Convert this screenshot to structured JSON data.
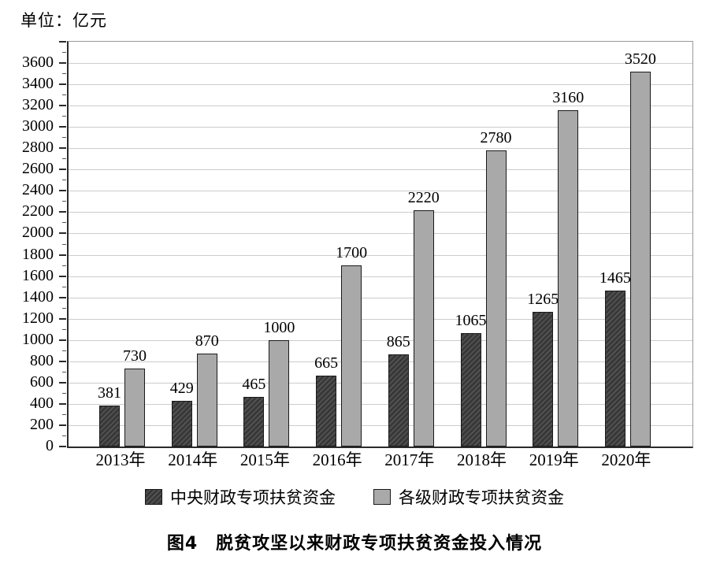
{
  "chart_data": {
    "type": "bar",
    "unit_label": "单位：亿元",
    "caption": "图4　脱贫攻坚以来财政专项扶贫资金投入情况",
    "categories": [
      "2013年",
      "2014年",
      "2015年",
      "2016年",
      "2017年",
      "2018年",
      "2019年",
      "2020年"
    ],
    "series": [
      {
        "name": "中央财政专项扶贫资金",
        "style": "dark-hatched",
        "color": "#3a3a3a",
        "values": [
          381,
          429,
          465,
          665,
          865,
          1065,
          1265,
          1465
        ]
      },
      {
        "name": "各级财政专项扶贫资金",
        "style": "light-gray",
        "color": "#a9a9a9",
        "values": [
          730,
          870,
          1000,
          1700,
          2220,
          2780,
          3160,
          3520
        ]
      }
    ],
    "ylim": [
      0,
      3800
    ],
    "ytick_step": 200,
    "ytick_minor_step": 100,
    "ytick_label_max": 3600,
    "grid": true,
    "value_labels": true,
    "legend_position": "bottom"
  },
  "colors": {
    "grid": "#cccccc",
    "axis": "#2b2b2b",
    "frame": "#999999",
    "bar_border": "#1a1a1a",
    "text": "#000000"
  }
}
